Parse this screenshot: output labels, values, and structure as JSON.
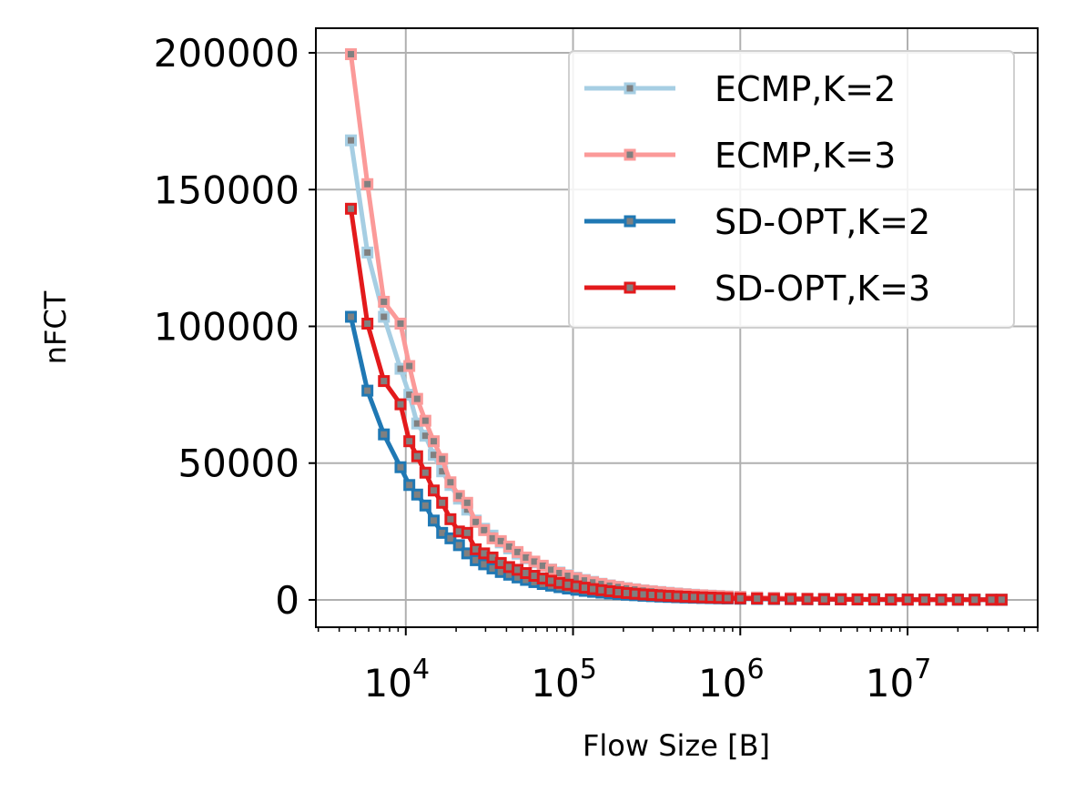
{
  "chart_data": {
    "type": "line",
    "xlabel": "Flow Size [B]",
    "ylabel": "nFCT",
    "xscale": "log",
    "xlim": [
      2900,
      60000000
    ],
    "ylim": [
      -10000,
      209000
    ],
    "grid": true,
    "legend_position": "top-right",
    "x_ticks": [
      {
        "base": "10",
        "exp": "4"
      },
      {
        "base": "10",
        "exp": "5"
      },
      {
        "base": "10",
        "exp": "6"
      },
      {
        "base": "10",
        "exp": "7"
      }
    ],
    "y_ticks": [
      "0",
      "50000",
      "100000",
      "150000",
      "200000"
    ],
    "marker_fill_color": "#808080",
    "x": [
      4700,
      5900,
      7400,
      9300,
      10500,
      11700,
      13100,
      14700,
      16500,
      18500,
      20800,
      23300,
      26200,
      29400,
      33000,
      37000,
      41500,
      46600,
      52300,
      58700,
      65900,
      74000,
      83000,
      93200,
      104600,
      117400,
      131800,
      148000,
      166100,
      186500,
      209400,
      235000,
      263800,
      296200,
      332500,
      373300,
      419100,
      470500,
      528200,
      593000,
      665700,
      747400,
      839100,
      1000000,
      1260000,
      1590000,
      2000000,
      2520000,
      3170000,
      3990000,
      5020000,
      6320000,
      7960000,
      10020000,
      12620000,
      15890000,
      20000000,
      25180000,
      31700000,
      36500000
    ],
    "series": [
      {
        "name": "ECMP,K=2",
        "color": "#a6cee3",
        "values": [
          168000,
          127000,
          103500,
          84500,
          75000,
          64500,
          60000,
          53000,
          47000,
          42000,
          37000,
          33000,
          29000,
          26000,
          23500,
          21000,
          18800,
          16900,
          15200,
          13700,
          12300,
          11100,
          10000,
          9000,
          8100,
          7300,
          6600,
          5900,
          5300,
          4800,
          4300,
          3900,
          3500,
          3200,
          2900,
          2600,
          2350,
          2100,
          1900,
          1700,
          1550,
          1400,
          1250,
          1100,
          900,
          750,
          600,
          500,
          420,
          360,
          300,
          260,
          220,
          190,
          160,
          140,
          120,
          100,
          90,
          80
        ]
      },
      {
        "name": "ECMP,K=3",
        "color": "#fb9a99",
        "values": [
          199500,
          152000,
          109000,
          101000,
          85500,
          73500,
          65500,
          58000,
          51500,
          43000,
          38000,
          35500,
          28500,
          25500,
          22500,
          21500,
          19500,
          17500,
          15500,
          14000,
          12500,
          11000,
          9800,
          8800,
          7900,
          7100,
          6400,
          5800,
          5200,
          4700,
          4200,
          3800,
          3400,
          3100,
          2800,
          2500,
          2250,
          2000,
          1800,
          1650,
          1500,
          1350,
          1200,
          1050,
          870,
          720,
          590,
          490,
          410,
          350,
          290,
          250,
          210,
          180,
          150,
          130,
          115,
          100,
          90,
          80
        ]
      },
      {
        "name": "SD-OPT,K=2",
        "color": "#1f78b4",
        "values": [
          103500,
          76500,
          60500,
          48500,
          42000,
          38500,
          34500,
          29000,
          24500,
          22500,
          20000,
          17000,
          14500,
          13000,
          11500,
          10200,
          9200,
          8200,
          7300,
          6500,
          5800,
          5200,
          4650,
          4150,
          3700,
          3300,
          2950,
          2650,
          2350,
          2100,
          1900,
          1700,
          1500,
          1350,
          1200,
          1080,
          970,
          870,
          780,
          700,
          630,
          560,
          500,
          420,
          350,
          290,
          240,
          200,
          170,
          145,
          120,
          100,
          88,
          76,
          66,
          58,
          50,
          44,
          40,
          36
        ]
      },
      {
        "name": "SD-OPT,K=3",
        "color": "#e31a1c",
        "values": [
          143000,
          101000,
          80000,
          71500,
          58000,
          52500,
          46500,
          40000,
          35500,
          29500,
          25000,
          24500,
          18500,
          17000,
          15500,
          13500,
          12000,
          11000,
          9800,
          8800,
          7800,
          7000,
          6200,
          5550,
          4950,
          4450,
          3950,
          3550,
          3150,
          2800,
          2500,
          2250,
          2000,
          1800,
          1600,
          1450,
          1300,
          1160,
          1040,
          930,
          830,
          740,
          660,
          560,
          470,
          390,
          320,
          270,
          230,
          195,
          165,
          140,
          120,
          100,
          88,
          76,
          66,
          58,
          52,
          46
        ]
      }
    ]
  }
}
